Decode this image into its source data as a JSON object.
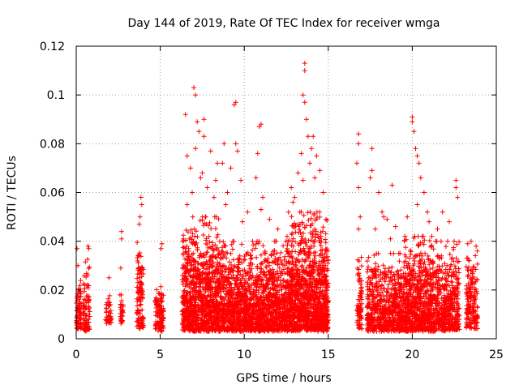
{
  "chart_data": {
    "type": "scatter",
    "title": "Day 144 of 2019, Rate Of TEC Index for receiver wmga",
    "xlabel": "GPS time / hours",
    "ylabel": "ROTI / TECUs",
    "xlim": [
      0,
      24
    ],
    "ylim": [
      0,
      0.12
    ],
    "x_ticks": [
      "0",
      "5",
      "10",
      "15",
      "20",
      "25"
    ],
    "x_tick_values": [
      0,
      5,
      10,
      15,
      20,
      25
    ],
    "y_ticks": [
      "0",
      "0.02",
      "0.04",
      "0.06",
      "0.08",
      "0.1",
      "0.12"
    ],
    "y_tick_values": [
      0,
      0.02,
      0.04,
      0.06,
      0.08,
      0.1,
      0.12
    ],
    "grid": true,
    "marker": "+",
    "color": "#ff0000",
    "series": [
      {
        "name": "ROTI",
        "clusters": [
          {
            "x": [
              0.0,
              0.3
            ],
            "ymin": 0.004,
            "ymax": 0.026,
            "n": 80,
            "outliers": [
              [
                0.05,
                0.037
              ],
              [
                0.1,
                0.03
              ]
            ]
          },
          {
            "x": [
              0.4,
              0.8
            ],
            "ymin": 0.003,
            "ymax": 0.034,
            "n": 90,
            "outliers": [
              [
                0.7,
                0.038
              ],
              [
                0.75,
                0.037
              ]
            ]
          },
          {
            "x": [
              1.75,
              2.1
            ],
            "ymin": 0.006,
            "ymax": 0.02,
            "n": 40,
            "outliers": [
              [
                1.95,
                0.025
              ]
            ]
          },
          {
            "x": [
              2.6,
              2.8
            ],
            "ymin": 0.005,
            "ymax": 0.018,
            "n": 30,
            "outliers": [
              [
                2.7,
                0.044
              ],
              [
                2.7,
                0.041
              ],
              [
                2.65,
                0.029
              ]
            ]
          },
          {
            "x": [
              3.6,
              4.0
            ],
            "ymin": 0.004,
            "ymax": 0.04,
            "n": 120,
            "outliers": [
              [
                3.85,
                0.058
              ],
              [
                3.9,
                0.055
              ],
              [
                3.8,
                0.05
              ],
              [
                3.75,
                0.047
              ]
            ]
          },
          {
            "x": [
              4.7,
              5.2
            ],
            "ymin": 0.003,
            "ymax": 0.026,
            "n": 110,
            "outliers": [
              [
                5.1,
                0.039
              ],
              [
                5.05,
                0.037
              ]
            ]
          },
          {
            "x": [
              6.3,
              8.5
            ],
            "ymin": 0.003,
            "ymax": 0.05,
            "n": 950,
            "outliers": [
              [
                6.5,
                0.092
              ],
              [
                7.0,
                0.103
              ],
              [
                7.1,
                0.1
              ],
              [
                7.2,
                0.089
              ],
              [
                7.3,
                0.085
              ],
              [
                7.1,
                0.078
              ],
              [
                7.6,
                0.09
              ],
              [
                7.6,
                0.083
              ],
              [
                6.8,
                0.07
              ],
              [
                6.6,
                0.075
              ],
              [
                8.0,
                0.077
              ],
              [
                7.4,
                0.066
              ],
              [
                6.9,
                0.06
              ],
              [
                7.8,
                0.062
              ],
              [
                8.2,
                0.058
              ],
              [
                8.4,
                0.072
              ],
              [
                6.6,
                0.055
              ],
              [
                7.5,
                0.068
              ],
              [
                8.3,
                0.065
              ]
            ]
          },
          {
            "x": [
              8.5,
              12.5
            ],
            "ymin": 0.003,
            "ymax": 0.04,
            "n": 1500,
            "outliers": [
              [
                8.8,
                0.08
              ],
              [
                8.7,
                0.072
              ],
              [
                9.4,
                0.096
              ],
              [
                9.5,
                0.097
              ],
              [
                9.5,
                0.08
              ],
              [
                9.6,
                0.077
              ],
              [
                9.2,
                0.07
              ],
              [
                10.9,
                0.087
              ],
              [
                11.0,
                0.088
              ],
              [
                10.8,
                0.076
              ],
              [
                10.7,
                0.066
              ],
              [
                11.1,
                0.058
              ],
              [
                11.0,
                0.053
              ],
              [
                9.8,
                0.065
              ],
              [
                9.0,
                0.06
              ],
              [
                10.2,
                0.052
              ],
              [
                11.5,
                0.049
              ],
              [
                12.0,
                0.045
              ],
              [
                8.9,
                0.055
              ],
              [
                9.9,
                0.048
              ]
            ]
          },
          {
            "x": [
              12.5,
              15.0
            ],
            "ymin": 0.003,
            "ymax": 0.052,
            "n": 1250,
            "outliers": [
              [
                13.6,
                0.11
              ],
              [
                13.6,
                0.113
              ],
              [
                13.5,
                0.1
              ],
              [
                13.6,
                0.097
              ],
              [
                13.7,
                0.09
              ],
              [
                13.8,
                0.083
              ],
              [
                14.0,
                0.078
              ],
              [
                14.1,
                0.083
              ],
              [
                13.4,
                0.076
              ],
              [
                14.3,
                0.075
              ],
              [
                14.5,
                0.069
              ],
              [
                14.2,
                0.066
              ],
              [
                13.9,
                0.072
              ],
              [
                12.8,
                0.062
              ],
              [
                13.2,
                0.068
              ],
              [
                13.0,
                0.058
              ],
              [
                14.7,
                0.06
              ],
              [
                13.5,
                0.065
              ],
              [
                12.9,
                0.056
              ]
            ]
          },
          {
            "x": [
              16.7,
              17.0
            ],
            "ymin": 0.004,
            "ymax": 0.035,
            "n": 80,
            "outliers": [
              [
                16.8,
                0.084
              ],
              [
                16.8,
                0.08
              ],
              [
                16.7,
                0.072
              ],
              [
                16.8,
                0.062
              ],
              [
                16.9,
                0.05
              ],
              [
                16.8,
                0.045
              ]
            ]
          },
          {
            "x": [
              17.3,
              19.5
            ],
            "ymin": 0.003,
            "ymax": 0.035,
            "n": 650,
            "outliers": [
              [
                17.6,
                0.078
              ],
              [
                17.6,
                0.069
              ],
              [
                17.5,
                0.066
              ],
              [
                18.0,
                0.06
              ],
              [
                18.3,
                0.05
              ],
              [
                18.8,
                0.063
              ],
              [
                18.5,
                0.049
              ],
              [
                17.8,
                0.045
              ],
              [
                18.2,
                0.052
              ],
              [
                19.0,
                0.046
              ],
              [
                18.7,
                0.041
              ]
            ]
          },
          {
            "x": [
              19.5,
              21.2
            ],
            "ymin": 0.003,
            "ymax": 0.042,
            "n": 650,
            "outliers": [
              [
                20.0,
                0.091
              ],
              [
                20.0,
                0.089
              ],
              [
                20.1,
                0.085
              ],
              [
                20.2,
                0.078
              ],
              [
                20.3,
                0.075
              ],
              [
                20.4,
                0.072
              ],
              [
                20.5,
                0.066
              ],
              [
                20.7,
                0.06
              ],
              [
                20.3,
                0.055
              ],
              [
                20.9,
                0.052
              ],
              [
                19.7,
                0.05
              ],
              [
                21.0,
                0.048
              ]
            ]
          },
          {
            "x": [
              21.2,
              22.8
            ],
            "ymin": 0.003,
            "ymax": 0.04,
            "n": 500,
            "outliers": [
              [
                22.6,
                0.065
              ],
              [
                22.6,
                0.062
              ],
              [
                21.8,
                0.052
              ],
              [
                22.2,
                0.048
              ],
              [
                21.5,
                0.045
              ],
              [
                22.7,
                0.058
              ]
            ]
          },
          {
            "x": [
              23.2,
              23.9
            ],
            "ymin": 0.004,
            "ymax": 0.036,
            "n": 170,
            "outliers": [
              [
                23.5,
                0.04
              ],
              [
                23.8,
                0.038
              ],
              [
                23.3,
                0.039
              ]
            ]
          }
        ]
      }
    ]
  }
}
